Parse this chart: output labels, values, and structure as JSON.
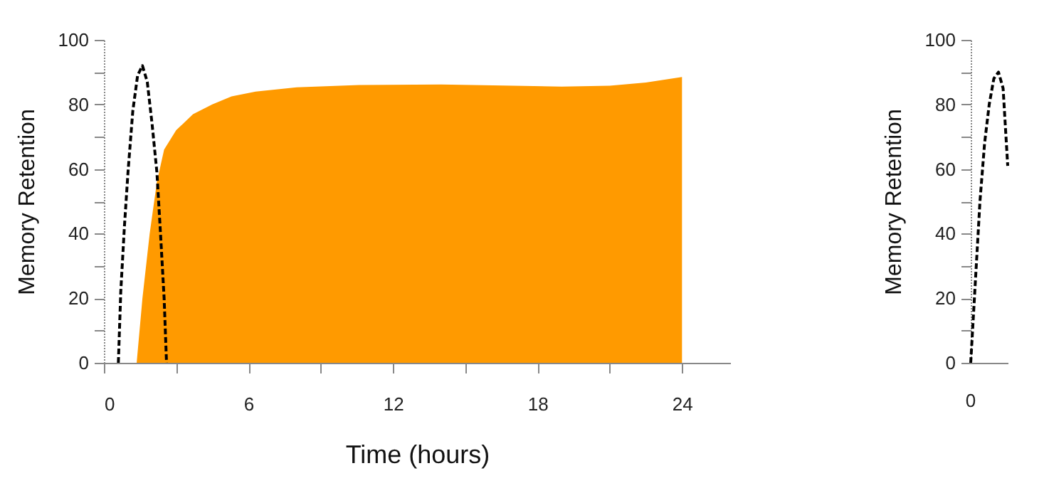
{
  "chart_data": [
    {
      "type": "line",
      "xlabel": "Time (hours)",
      "ylabel": "Memory Retention",
      "xlim": [
        0,
        26
      ],
      "ylim": [
        0,
        100
      ],
      "xticks": [
        0,
        {
          "value": 3,
          "label": null
        },
        6,
        {
          "value": 9,
          "label": null
        },
        12,
        {
          "value": 15,
          "label": null
        },
        18,
        {
          "value": 21,
          "label": null
        },
        24
      ],
      "yticks": [
        0,
        {
          "value": 10,
          "label": null
        },
        20,
        {
          "value": 30,
          "label": null
        },
        40,
        {
          "value": 50,
          "label": null
        },
        60,
        {
          "value": 70,
          "label": null
        },
        80,
        {
          "value": 90,
          "label": null
        },
        100
      ],
      "grid": false,
      "series": [
        {
          "type": "area",
          "color": "#ff9a00",
          "x": [
            1.36,
            1.6,
            1.9,
            2.2,
            2.5,
            3,
            3.7,
            4.5,
            5.3,
            6.3,
            8,
            10.6,
            14,
            17,
            19,
            21,
            22.5,
            24
          ],
          "values": [
            0,
            20,
            40,
            56,
            66,
            72,
            77,
            80,
            82.5,
            84,
            85.3,
            86,
            86.2,
            85.8,
            85.5,
            85.8,
            86.8,
            88.5
          ]
        },
        {
          "type": "line",
          "color": "#000000",
          "line_style": "dashed",
          "marker": "none",
          "x": [
            0.6,
            0.7,
            0.85,
            1.0,
            1.2,
            1.4,
            1.6,
            1.8,
            2.0,
            2.2,
            2.35,
            2.5,
            2.6
          ],
          "values": [
            0,
            22,
            42,
            59,
            78,
            89,
            92,
            87,
            74,
            59,
            40,
            20,
            0
          ]
        }
      ]
    },
    {
      "type": "line",
      "ylabel": "Memory Retention",
      "ylim": [
        0,
        100
      ],
      "tick_labels": "y",
      "annotations": [
        "0"
      ],
      "categories": [
        null,
        null,
        null,
        null,
        null,
        null,
        null,
        null,
        null
      ],
      "yticks": [
        0,
        {
          "value": 10,
          "label": null
        },
        20,
        {
          "value": 30,
          "label": null
        },
        40,
        {
          "value": 50,
          "label": null
        },
        60,
        {
          "value": 70,
          "label": null
        },
        80,
        {
          "value": 90,
          "label": null
        },
        100
      ],
      "grid": false,
      "series": [
        {
          "type": "line",
          "color": "#000000",
          "line_style": "dashed",
          "marker": "none",
          "values": [
            0,
            25,
            50,
            68,
            80,
            88,
            90,
            85,
            61
          ]
        }
      ]
    }
  ]
}
